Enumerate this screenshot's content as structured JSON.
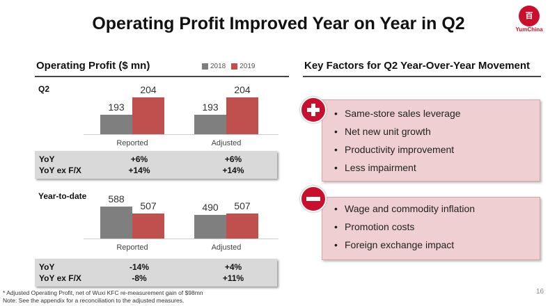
{
  "title": "Operating Profit Improved Year on Year in Q2",
  "logo": {
    "text": "YumChina",
    "glyph": "百勝",
    "color": "#c8102e"
  },
  "left": {
    "header": "Operating Profit ($ mn)",
    "legend": [
      "2018",
      "2019"
    ],
    "q2": {
      "label": "Q2",
      "yoy": {
        "labels": [
          "YoY",
          "YoY ex F/X"
        ],
        "reported": [
          "+6%",
          "+14%"
        ],
        "adjusted": [
          "+6%",
          "+14%"
        ]
      }
    },
    "ytd": {
      "label": "Year-to-date",
      "yoy": {
        "labels": [
          "YoY",
          "YoY ex F/X"
        ],
        "reported": [
          "-14%",
          "-8%"
        ],
        "adjusted": [
          "+4%",
          "+11%"
        ]
      }
    }
  },
  "chart_data": [
    {
      "type": "bar",
      "title": "Q2",
      "categories": [
        "Reported",
        "Adjusted"
      ],
      "series": [
        {
          "name": "2018",
          "color": "#7f7f7f",
          "values": [
            193,
            193
          ]
        },
        {
          "name": "2019",
          "color": "#c0504d",
          "values": [
            204,
            204
          ]
        }
      ],
      "ylim": [
        180.6,
        207
      ],
      "legend": "top-right"
    },
    {
      "type": "bar",
      "title": "Year-to-date",
      "categories": [
        "Reported",
        "Adjusted"
      ],
      "series": [
        {
          "name": "2018",
          "color": "#7f7f7f",
          "values": [
            588,
            490
          ]
        },
        {
          "name": "2019",
          "color": "#c0504d",
          "values": [
            507,
            507
          ]
        }
      ],
      "ylim": [
        214,
        702
      ],
      "legend": "top-right"
    }
  ],
  "right": {
    "header": "Key Factors for Q2 Year-Over-Year Movement",
    "positive": [
      "Same-store sales leverage",
      "Net new unit growth",
      "Productivity improvement",
      "Less impairment"
    ],
    "negative": [
      "Wage and commodity inflation",
      "Promotion costs",
      "Foreign exchange impact"
    ]
  },
  "footnotes": [
    "* Adjusted Operating Profit, net of Wuxi KFC re-measurement gain of $98mn",
    "Note: See the appendix for a reconciliation to the adjusted measures."
  ],
  "page_number": "16"
}
